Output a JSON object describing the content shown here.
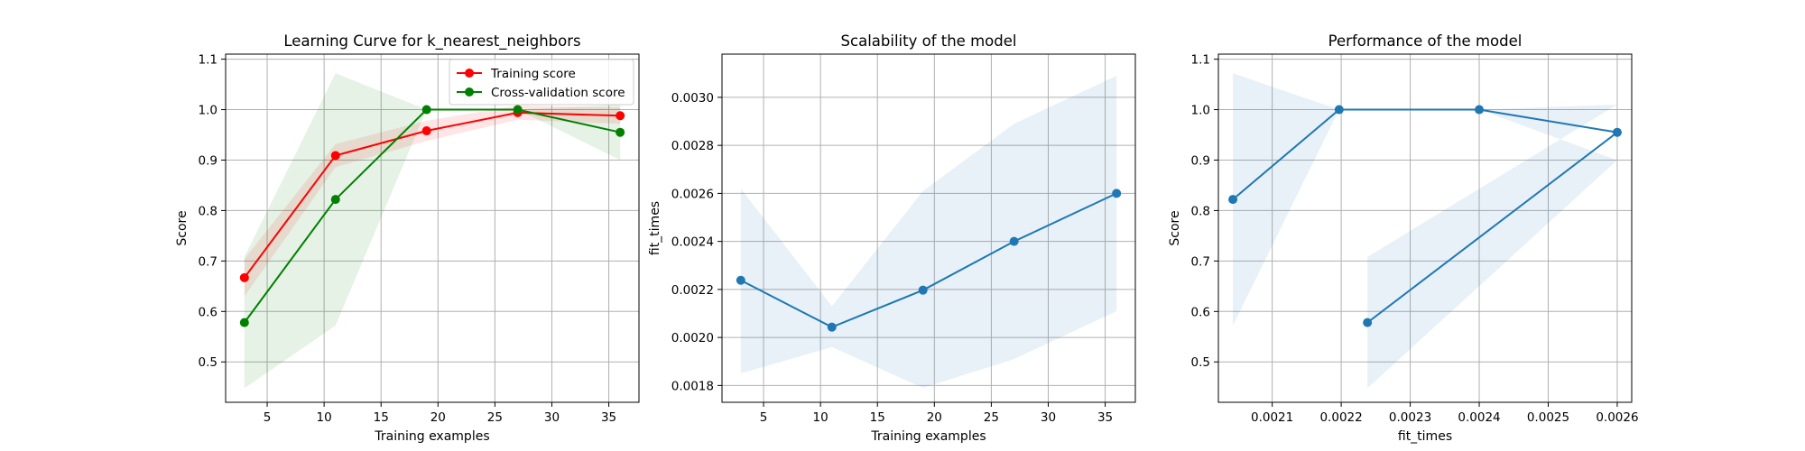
{
  "chart_data": [
    {
      "type": "line",
      "title": "Learning Curve for k_nearest_neighbors",
      "xlabel": "Training examples",
      "ylabel": "Score",
      "xlim": [
        1.35,
        37.65
      ],
      "ylim": [
        0.42,
        1.11
      ],
      "xticks": [
        5,
        10,
        15,
        20,
        25,
        30,
        35
      ],
      "xtick_labels": [
        "5",
        "10",
        "15",
        "20",
        "25",
        "30",
        "35"
      ],
      "yticks": [
        0.5,
        0.6,
        0.7,
        0.8,
        0.9,
        1.0,
        1.1
      ],
      "ytick_labels": [
        "0.5",
        "0.6",
        "0.7",
        "0.8",
        "0.9",
        "1.0",
        "1.1"
      ],
      "grid": true,
      "legend": "top-right",
      "x": [
        3,
        11,
        19,
        27,
        36
      ],
      "series": [
        {
          "name": "Training score",
          "color": "#ff0000",
          "values": [
            0.667,
            0.909,
            0.958,
            0.994,
            0.988
          ],
          "band_lower": [
            0.63,
            0.886,
            0.938,
            0.98,
            0.972
          ],
          "band_upper": [
            0.704,
            0.932,
            0.978,
            1.008,
            1.004
          ]
        },
        {
          "name": "Cross-validation score",
          "color": "#008000",
          "values": [
            0.578,
            0.822,
            1.0,
            1.0,
            0.955
          ],
          "band_lower": [
            0.448,
            0.572,
            1.0,
            1.0,
            0.9
          ],
          "band_upper": [
            0.708,
            1.072,
            1.0,
            1.0,
            1.01
          ]
        }
      ]
    },
    {
      "type": "line",
      "title": "Scalability of the model",
      "xlabel": "Training examples",
      "ylabel": "fit_times",
      "xlim": [
        1.35,
        37.65
      ],
      "ylim": [
        0.00173,
        0.00318
      ],
      "xticks": [
        5,
        10,
        15,
        20,
        25,
        30,
        35
      ],
      "xtick_labels": [
        "5",
        "10",
        "15",
        "20",
        "25",
        "30",
        "35"
      ],
      "yticks": [
        0.0018,
        0.002,
        0.0022,
        0.0024,
        0.0026,
        0.0028,
        0.003
      ],
      "ytick_labels": [
        "0.0018",
        "0.0020",
        "0.0022",
        "0.0024",
        "0.0026",
        "0.0028",
        "0.0030"
      ],
      "grid": true,
      "x": [
        3,
        11,
        19,
        27,
        36
      ],
      "series": [
        {
          "color": "#1f77b4",
          "values": [
            0.002238,
            0.002043,
            0.002197,
            0.0024,
            0.0026
          ],
          "band_lower": [
            0.00185,
            0.00196,
            0.00179,
            0.00191,
            0.00211
          ],
          "band_upper": [
            0.00262,
            0.00213,
            0.00261,
            0.00289,
            0.00309
          ]
        }
      ]
    },
    {
      "type": "line",
      "title": "Performance of the model",
      "xlabel": "fit_times",
      "ylabel": "Score",
      "xlim": [
        0.002022,
        0.002621
      ],
      "ylim": [
        0.42,
        1.11
      ],
      "xticks": [
        0.0021,
        0.0022,
        0.0023,
        0.0024,
        0.0025,
        0.0026
      ],
      "xtick_labels": [
        "0.0021",
        "0.0022",
        "0.0023",
        "0.0024",
        "0.0025",
        "0.0026"
      ],
      "yticks": [
        0.5,
        0.6,
        0.7,
        0.8,
        0.9,
        1.0,
        1.1
      ],
      "ytick_labels": [
        "0.5",
        "0.6",
        "0.7",
        "0.8",
        "0.9",
        "1.0",
        "1.1"
      ],
      "grid": true,
      "series": [
        {
          "color": "#1f77b4",
          "x": [
            0.002043,
            0.002197,
            0.0024,
            0.0026,
            0.002238
          ],
          "values": [
            0.822,
            1.0,
            1.0,
            0.955,
            0.578
          ],
          "band_lower": [
            0.572,
            1.0,
            1.0,
            0.9,
            0.448
          ],
          "band_upper": [
            1.072,
            1.0,
            1.0,
            1.01,
            0.708
          ]
        }
      ]
    }
  ]
}
